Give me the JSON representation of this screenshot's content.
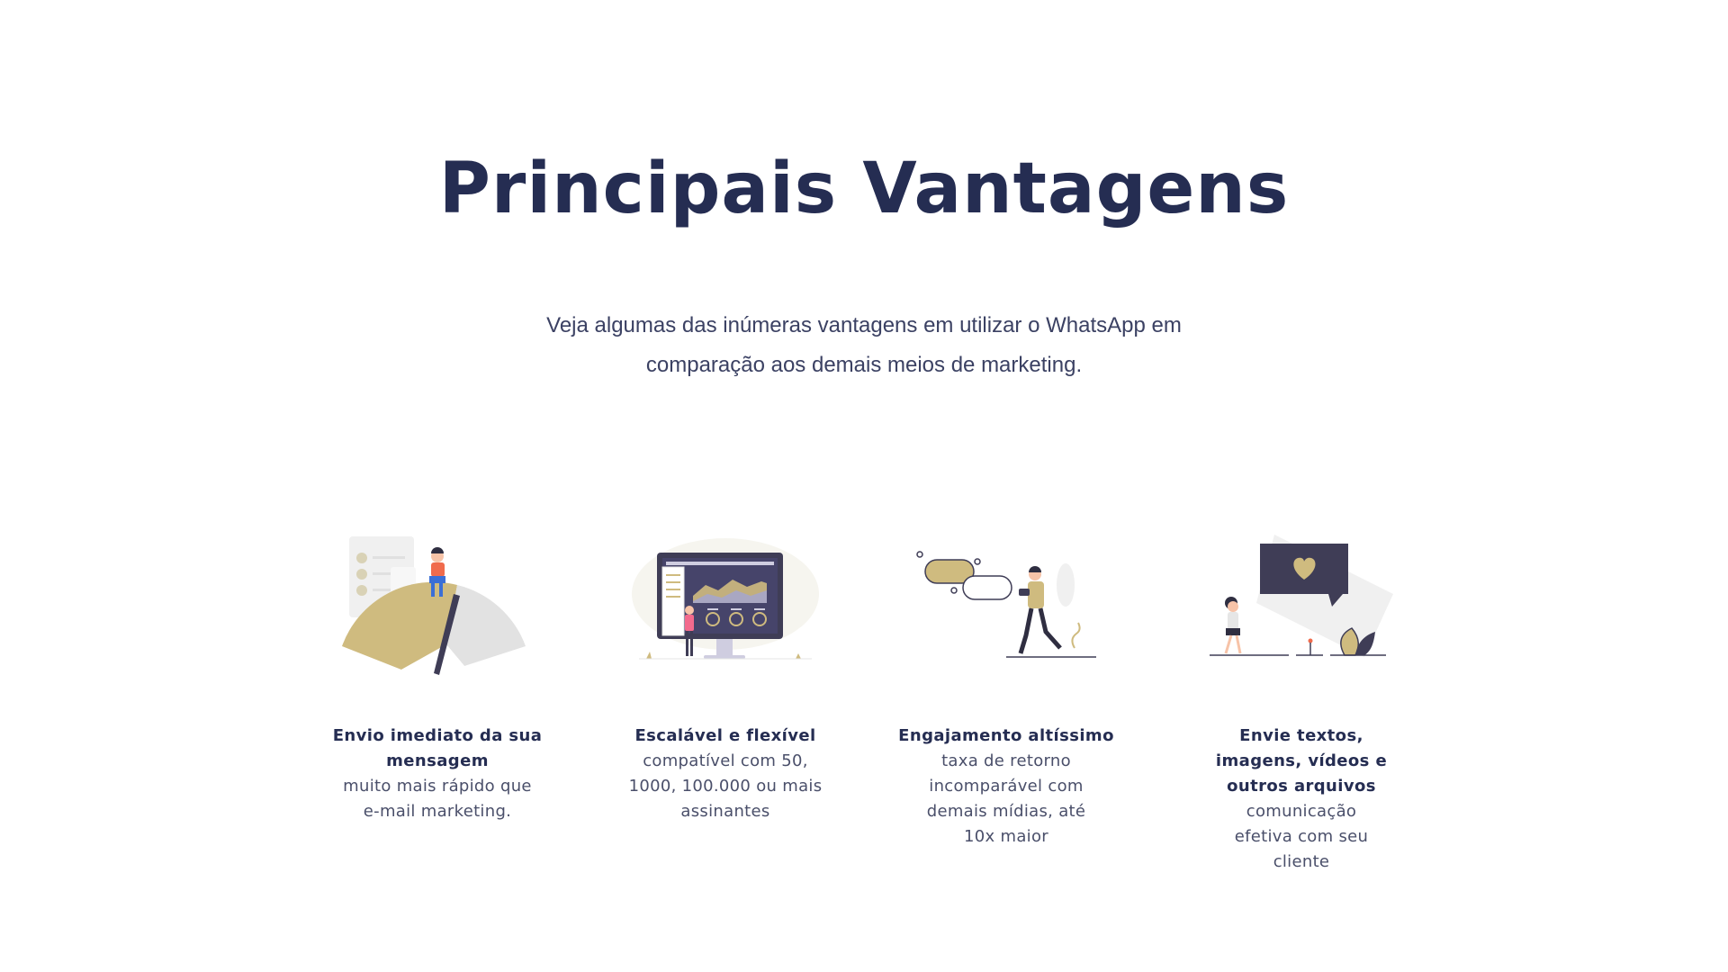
{
  "section": {
    "title": "Principais Vantagens",
    "subtitle": "Veja algumas das inúmeras vantagens em utilizar o WhatsApp em comparação aos demais meios de marketing."
  },
  "features": [
    {
      "title": "Envio imediato da sua mensagem",
      "description": "muito mais rápido que e-mail marketing.",
      "icon": "speedometer-person-illustration"
    },
    {
      "title": "Escalável e flexível",
      "description": "compatível com 50, 1000, 100.000 ou mais assinantes",
      "icon": "monitor-dashboard-illustration"
    },
    {
      "title": "Engajamento altíssimo",
      "description": "taxa de retorno incomparável com demais mídias, até 10x maior",
      "icon": "person-chat-bubbles-illustration"
    },
    {
      "title": "Envie textos, imagens, vídeos e outros arquivos",
      "description": "comunicação efetiva com seu cliente",
      "icon": "heart-message-illustration"
    }
  ],
  "colors": {
    "navy": "#252d52",
    "gold": "#cfbb7f",
    "dark_slate": "#3f3d56",
    "light_gray": "#e6e6e6",
    "coral": "#f06b4c",
    "pink": "#f36a8d"
  }
}
